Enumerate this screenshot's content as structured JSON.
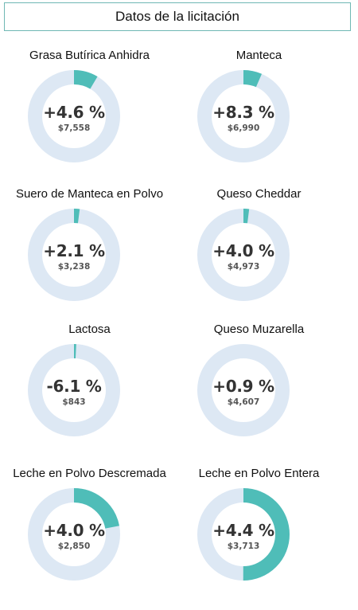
{
  "header": {
    "title": "Datos de la licitación"
  },
  "colors": {
    "track": "#dde8f4",
    "fill": "#4fbdb8",
    "border": "#6fb8b4"
  },
  "chart_data": [
    {
      "type": "pie",
      "title": "Grasa Butírica Anhidra",
      "change": "+4.6 %",
      "value_label": "$7,558",
      "fill_fraction": 0.085
    },
    {
      "type": "pie",
      "title": "Manteca",
      "change": "+8.3 %",
      "value_label": "$6,990",
      "fill_fraction": 0.065
    },
    {
      "type": "pie",
      "title": "Suero de Manteca en Polvo",
      "change": "+2.1 %",
      "value_label": "$3,238",
      "fill_fraction": 0.02
    },
    {
      "type": "pie",
      "title": "Queso Cheddar",
      "change": "+4.0 %",
      "value_label": "$4,973",
      "fill_fraction": 0.02
    },
    {
      "type": "pie",
      "title": "Lactosa",
      "change": "-6.1 %",
      "value_label": "$843",
      "fill_fraction": 0.008
    },
    {
      "type": "pie",
      "title": "Queso Muzarella",
      "change": "+0.9 %",
      "value_label": "$4,607",
      "fill_fraction": 0
    },
    {
      "type": "pie",
      "title": "Leche en Polvo Descremada",
      "change": "+4.0 %",
      "value_label": "$2,850",
      "fill_fraction": 0.22
    },
    {
      "type": "pie",
      "title": "Leche en Polvo Entera",
      "change": "+4.4 %",
      "value_label": "$3,713",
      "fill_fraction": 0.5
    }
  ]
}
